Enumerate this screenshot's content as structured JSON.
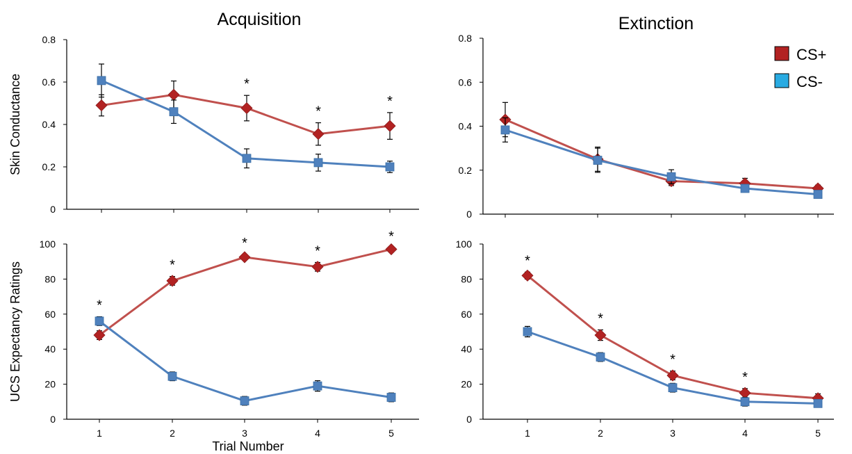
{
  "titles": {
    "left": "Acquisition",
    "right": "Extinction"
  },
  "x_axis_label": "Trial Number",
  "legend": [
    {
      "label": "CS+",
      "color": "#b22222"
    },
    {
      "label": "CS-",
      "color": "#29abe2"
    }
  ],
  "colors": {
    "cs_plus_line": "#c0504d",
    "cs_minus_line": "#4f81bd"
  },
  "chart_data": [
    {
      "type": "line",
      "title": "Acquisition",
      "ylabel": "Skin Conductance",
      "xlabel": "",
      "x": [
        1,
        2,
        3,
        4,
        5
      ],
      "ylim": [
        0,
        0.8
      ],
      "yticks": [
        "0",
        "0.2",
        "0.4",
        "0.6",
        "0.8"
      ],
      "xtick_labels": [
        "",
        "",
        "",
        "",
        ""
      ],
      "series": [
        {
          "name": "CS+",
          "values": [
            0.49,
            0.54,
            0.477,
            0.355,
            0.393
          ],
          "errors": [
            0.05,
            0.065,
            0.06,
            0.053,
            0.063
          ]
        },
        {
          "name": "CS-",
          "values": [
            0.607,
            0.46,
            0.24,
            0.22,
            0.2
          ],
          "errors": [
            0.078,
            0.055,
            0.045,
            0.04,
            0.027
          ]
        }
      ],
      "significance": [
        "",
        "",
        "*",
        "*",
        "*"
      ]
    },
    {
      "type": "line",
      "title": "Extinction",
      "ylabel": "",
      "xlabel": "",
      "x": [
        1,
        2,
        3,
        4,
        5
      ],
      "ylim": [
        0,
        0.8
      ],
      "yticks": [
        "0",
        "0.2",
        "0.4",
        "0.6",
        "0.8"
      ],
      "xtick_labels": [
        "",
        "",
        "",
        "",
        ""
      ],
      "series": [
        {
          "name": "CS+",
          "values": [
            0.43,
            0.25,
            0.15,
            0.14,
            0.117
          ],
          "errors": [
            0.078,
            0.055,
            0.02,
            0.023,
            0.015
          ]
        },
        {
          "name": "CS-",
          "values": [
            0.383,
            0.245,
            0.17,
            0.117,
            0.09
          ],
          "errors": [
            0.055,
            0.055,
            0.032,
            0.015,
            0.01
          ]
        }
      ],
      "significance": [
        "",
        "",
        "",
        "",
        ""
      ]
    },
    {
      "type": "line",
      "title": "",
      "ylabel": "UCS Expectancy Ratings",
      "xlabel": "Trial Number",
      "x": [
        1,
        2,
        3,
        4,
        5
      ],
      "ylim": [
        0,
        100
      ],
      "yticks": [
        "0",
        "20",
        "40",
        "60",
        "80",
        "100"
      ],
      "xtick_labels": [
        "1",
        "2",
        "3",
        "4",
        "5"
      ],
      "series": [
        {
          "name": "CS+",
          "values": [
            48,
            79,
            92.5,
            87,
            97
          ],
          "errors": [
            2.5,
            2.5,
            1.5,
            2.5,
            0.8
          ]
        },
        {
          "name": "CS-",
          "values": [
            56,
            24.5,
            10.5,
            19,
            12.5
          ],
          "errors": [
            2.5,
            2.5,
            2.5,
            3,
            2.5
          ]
        }
      ],
      "significance": [
        "*",
        "*",
        "*",
        "*",
        "*"
      ]
    },
    {
      "type": "line",
      "title": "",
      "ylabel": "",
      "xlabel": "",
      "x": [
        1,
        2,
        3,
        4,
        5
      ],
      "ylim": [
        0,
        100
      ],
      "yticks": [
        "0",
        "20",
        "40",
        "60",
        "80",
        "100"
      ],
      "xtick_labels": [
        "1",
        "2",
        "3",
        "4",
        "5"
      ],
      "series": [
        {
          "name": "CS+",
          "values": [
            82,
            48,
            25,
            15,
            12
          ],
          "errors": [
            2,
            3,
            2.5,
            2.5,
            2.5
          ]
        },
        {
          "name": "CS-",
          "values": [
            50,
            35.5,
            18,
            10,
            9
          ],
          "errors": [
            3,
            2.5,
            2.5,
            2.5,
            2
          ]
        }
      ],
      "significance": [
        "*",
        "*",
        "*",
        "*",
        ""
      ]
    }
  ]
}
